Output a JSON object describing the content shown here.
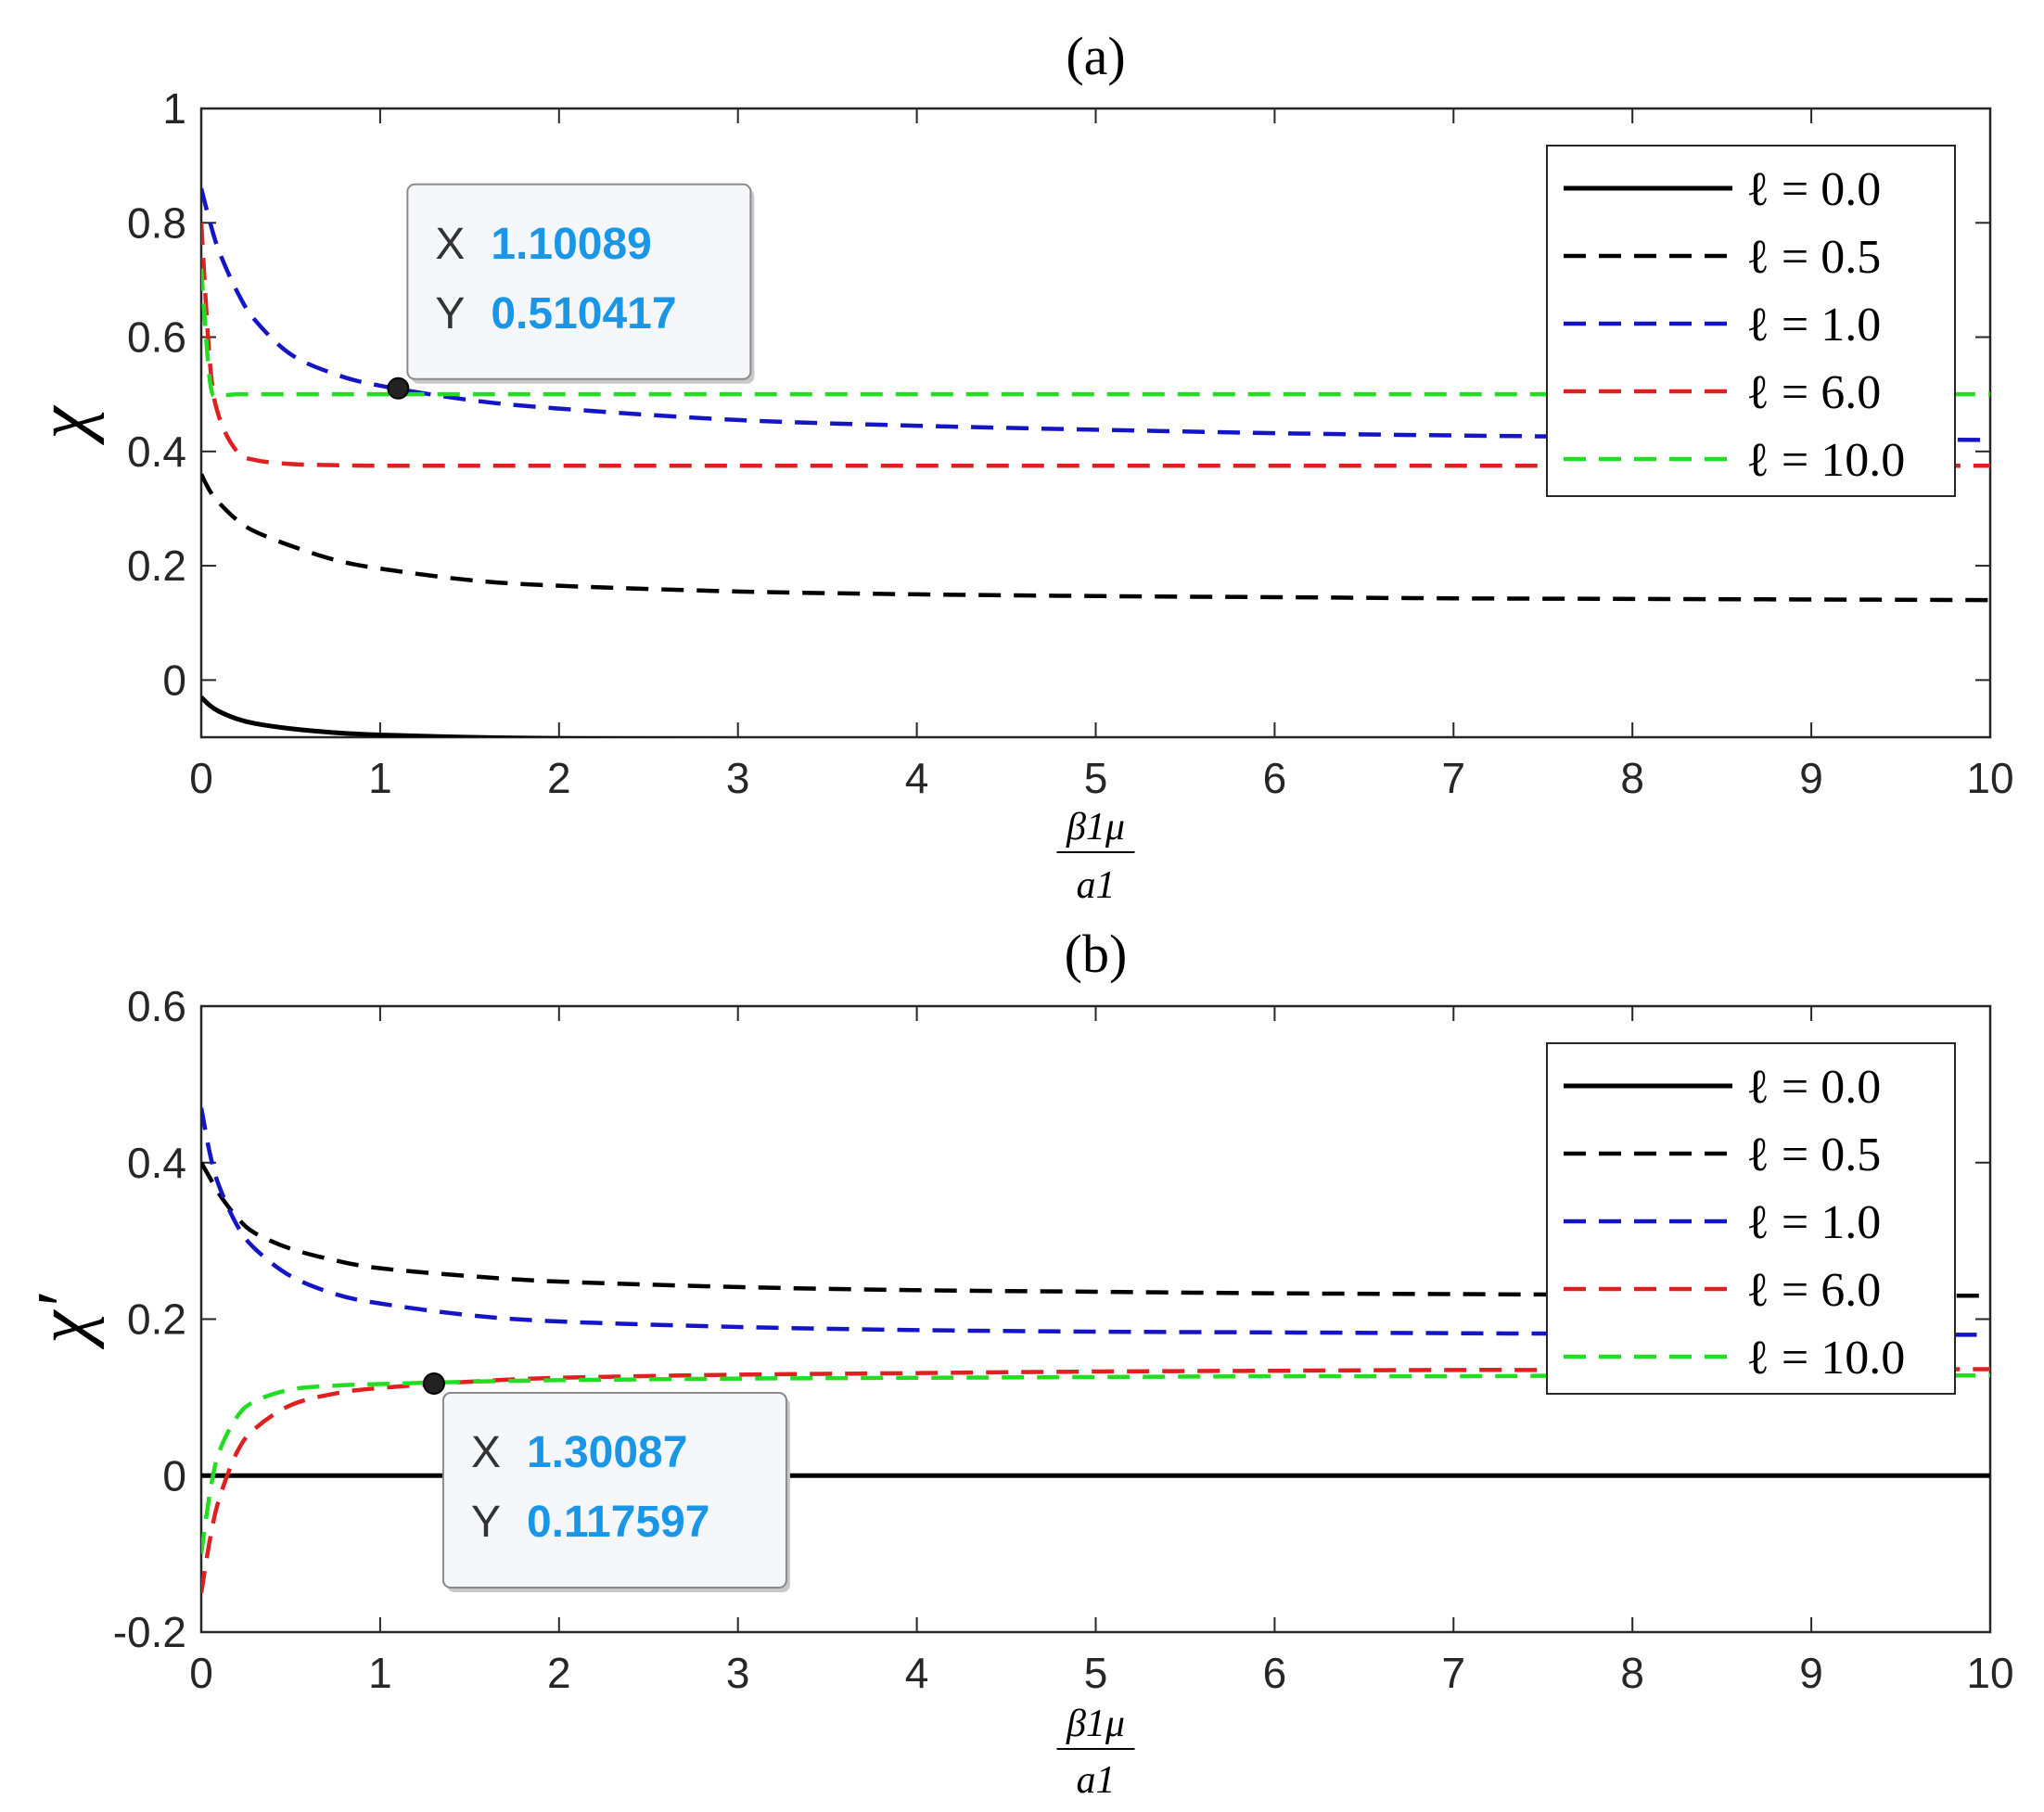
{
  "chart_data": [
    {
      "type": "line",
      "panel": "(a)",
      "title": "(a)",
      "xlabel_num": "β1μ",
      "xlabel_den": "a1",
      "ylabel": "χ",
      "xlim": [
        0,
        10
      ],
      "ylim": [
        -0.1,
        1
      ],
      "xticks": [
        0,
        1,
        2,
        3,
        4,
        5,
        6,
        7,
        8,
        9,
        10
      ],
      "xtick_labels": [
        "0",
        "1",
        "2",
        "3",
        "4",
        "5",
        "6",
        "7",
        "8",
        "9",
        "10"
      ],
      "yticks": [
        0,
        0.2,
        0.4,
        0.6,
        0.8,
        1
      ],
      "ytick_labels": [
        "0",
        "0.2",
        "0.4",
        "0.6",
        "0.8",
        "1"
      ],
      "grid": false,
      "legend_position": "top-right",
      "x": [
        0,
        0.05,
        0.1,
        0.2,
        0.3,
        0.5,
        0.75,
        1,
        1.5,
        2,
        3,
        4,
        5,
        6,
        7,
        8,
        9,
        10
      ],
      "series": [
        {
          "name": "ℓ = 0.0",
          "color": "#000000",
          "dash": "solid",
          "values": [
            -0.03,
            -0.045,
            -0.055,
            -0.068,
            -0.076,
            -0.085,
            -0.092,
            -0.096,
            -0.1,
            -0.102,
            -0.104,
            -0.105,
            -0.105,
            -0.106,
            -0.106,
            -0.106,
            -0.106,
            -0.106
          ]
        },
        {
          "name": "ℓ = 0.5",
          "color": "#000000",
          "dash": "dashed",
          "values": [
            0.36,
            0.33,
            0.31,
            0.28,
            0.26,
            0.235,
            0.21,
            0.195,
            0.175,
            0.165,
            0.155,
            0.15,
            0.147,
            0.145,
            0.143,
            0.142,
            0.141,
            0.14
          ]
        },
        {
          "name": "ℓ = 1.0",
          "color": "#1515c8",
          "dash": "dashed",
          "values": [
            0.86,
            0.8,
            0.75,
            0.68,
            0.63,
            0.57,
            0.535,
            0.515,
            0.49,
            0.475,
            0.455,
            0.445,
            0.438,
            0.432,
            0.428,
            0.425,
            0.422,
            0.42
          ]
        },
        {
          "name": "ℓ = 6.0",
          "color": "#e02020",
          "dash": "dashed",
          "values": [
            0.8,
            0.55,
            0.46,
            0.4,
            0.385,
            0.378,
            0.376,
            0.375,
            0.375,
            0.375,
            0.375,
            0.375,
            0.375,
            0.375,
            0.375,
            0.375,
            0.375,
            0.375
          ]
        },
        {
          "name": "ℓ = 10.0",
          "color": "#22dd22",
          "dash": "dashed",
          "values": [
            0.72,
            0.52,
            0.5,
            0.5,
            0.5,
            0.5,
            0.5,
            0.5,
            0.5,
            0.5,
            0.5,
            0.5,
            0.5,
            0.5,
            0.5,
            0.5,
            0.5,
            0.5
          ]
        }
      ],
      "datatip": {
        "x": 1.10089,
        "y": 0.510417,
        "x_label": "X",
        "y_label": "Y",
        "x_text": "1.10089",
        "y_text": "0.510417"
      }
    },
    {
      "type": "line",
      "panel": "(b)",
      "title": "(b)",
      "xlabel_num": "β1μ",
      "xlabel_den": "a1",
      "ylabel": "χ′",
      "xlim": [
        0,
        10
      ],
      "ylim": [
        -0.2,
        0.6
      ],
      "xticks": [
        0,
        1,
        2,
        3,
        4,
        5,
        6,
        7,
        8,
        9,
        10
      ],
      "xtick_labels": [
        "0",
        "1",
        "2",
        "3",
        "4",
        "5",
        "6",
        "7",
        "8",
        "9",
        "10"
      ],
      "yticks": [
        -0.2,
        0,
        0.2,
        0.4,
        0.6
      ],
      "ytick_labels": [
        "-0.2",
        "0",
        "0.2",
        "0.4",
        "0.6"
      ],
      "grid": false,
      "legend_position": "top-right",
      "x": [
        0,
        0.05,
        0.1,
        0.2,
        0.3,
        0.5,
        0.75,
        1,
        1.5,
        2,
        3,
        4,
        5,
        6,
        7,
        8,
        9,
        10
      ],
      "series": [
        {
          "name": "ℓ = 0.0",
          "color": "#000000",
          "dash": "solid",
          "values": [
            0,
            0,
            0,
            0,
            0,
            0,
            0,
            0,
            0,
            0,
            0,
            0,
            0,
            0,
            0,
            0,
            0,
            0
          ]
        },
        {
          "name": "ℓ = 0.5",
          "color": "#000000",
          "dash": "dashed",
          "values": [
            0.4,
            0.38,
            0.36,
            0.33,
            0.31,
            0.29,
            0.275,
            0.265,
            0.255,
            0.248,
            0.241,
            0.237,
            0.235,
            0.233,
            0.232,
            0.231,
            0.23,
            0.23
          ]
        },
        {
          "name": "ℓ = 1.0",
          "color": "#1515c8",
          "dash": "dashed",
          "values": [
            0.47,
            0.41,
            0.37,
            0.32,
            0.29,
            0.255,
            0.232,
            0.22,
            0.205,
            0.197,
            0.19,
            0.186,
            0.184,
            0.183,
            0.182,
            0.181,
            0.18,
            0.18
          ]
        },
        {
          "name": "ℓ = 6.0",
          "color": "#e02020",
          "dash": "dashed",
          "values": [
            -0.15,
            -0.08,
            -0.03,
            0.03,
            0.06,
            0.09,
            0.105,
            0.112,
            0.12,
            0.125,
            0.129,
            0.131,
            0.133,
            0.134,
            0.135,
            0.135,
            0.136,
            0.136
          ]
        },
        {
          "name": "ℓ = 10.0",
          "color": "#22dd22",
          "dash": "dashed",
          "values": [
            -0.1,
            -0.02,
            0.03,
            0.075,
            0.095,
            0.11,
            0.115,
            0.117,
            0.12,
            0.122,
            0.124,
            0.125,
            0.126,
            0.127,
            0.127,
            0.128,
            0.128,
            0.128
          ]
        }
      ],
      "datatip": {
        "x": 1.30087,
        "y": 0.117597,
        "x_label": "X",
        "y_label": "Y",
        "x_text": "1.30087",
        "y_text": "0.117597"
      }
    }
  ]
}
